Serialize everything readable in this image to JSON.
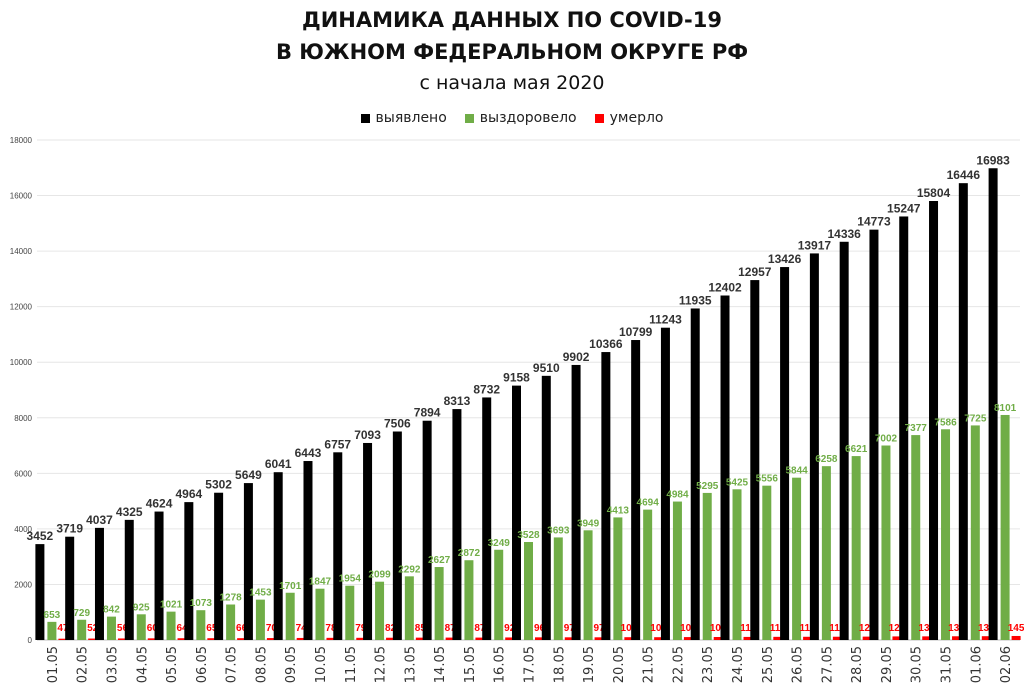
{
  "title_line1": "ДИНАМИКА ДАННЫХ ПО COVID-19",
  "title_line2": "В ЮЖНОМ ФЕДЕРАЛЬНОМ ОКРУГЕ РФ",
  "subtitle": "с начала мая 2020",
  "colors": {
    "identified": "#000000",
    "recovered": "#70ad47",
    "died": "#ff0000"
  },
  "chart_data": {
    "type": "bar",
    "title": "ДИНАМИКА ДАННЫХ ПО COVID-19 В ЮЖНОМ ФЕДЕРАЛЬНОМ ОКРУГЕ РФ",
    "subtitle": "с начала мая 2020",
    "ylim": [
      0,
      18000
    ],
    "yticks": [
      0,
      2000,
      4000,
      6000,
      8000,
      10000,
      12000,
      14000,
      16000,
      18000
    ],
    "legend_position": "top-center",
    "categories": [
      "01.05",
      "02.05",
      "03.05",
      "04.05",
      "05.05",
      "06.05",
      "07.05",
      "08.05",
      "09.05",
      "10.05",
      "11.05",
      "12.05",
      "13.05",
      "14.05",
      "15.05",
      "16.05",
      "17.05",
      "18.05",
      "19.05",
      "20.05",
      "21.05",
      "22.05",
      "23.05",
      "24.05",
      "25.05",
      "26.05",
      "27.05",
      "28.05",
      "29.05",
      "30.05",
      "31.05",
      "01.06",
      "02.06"
    ],
    "series": [
      {
        "name": "выявлено",
        "values": [
          3452,
          3719,
          4037,
          4325,
          4624,
          4964,
          5302,
          5649,
          6041,
          6443,
          6757,
          7093,
          7506,
          7894,
          8313,
          8732,
          9158,
          9510,
          9902,
          10366,
          10799,
          11243,
          11935,
          12402,
          12957,
          13426,
          13917,
          14336,
          14773,
          15247,
          15804,
          16446,
          16983
        ]
      },
      {
        "name": "выздоровело",
        "values": [
          653,
          729,
          842,
          925,
          1021,
          1073,
          1278,
          1453,
          1701,
          1847,
          1954,
          2099,
          2292,
          2627,
          2872,
          3249,
          3528,
          3693,
          3949,
          4413,
          4694,
          4984,
          5295,
          5425,
          5556,
          5844,
          6258,
          6621,
          7002,
          7377,
          7586,
          7725,
          8101
        ]
      },
      {
        "name": "умерло",
        "values": [
          47,
          52,
          56,
          60,
          64,
          65,
          66,
          70,
          74,
          78,
          79,
          82,
          85,
          87,
          87,
          92,
          96,
          97,
          97,
          101,
          101,
          105,
          108,
          111,
          114,
          116,
          118,
          122,
          129,
          131,
          134,
          137,
          145
        ]
      }
    ]
  }
}
